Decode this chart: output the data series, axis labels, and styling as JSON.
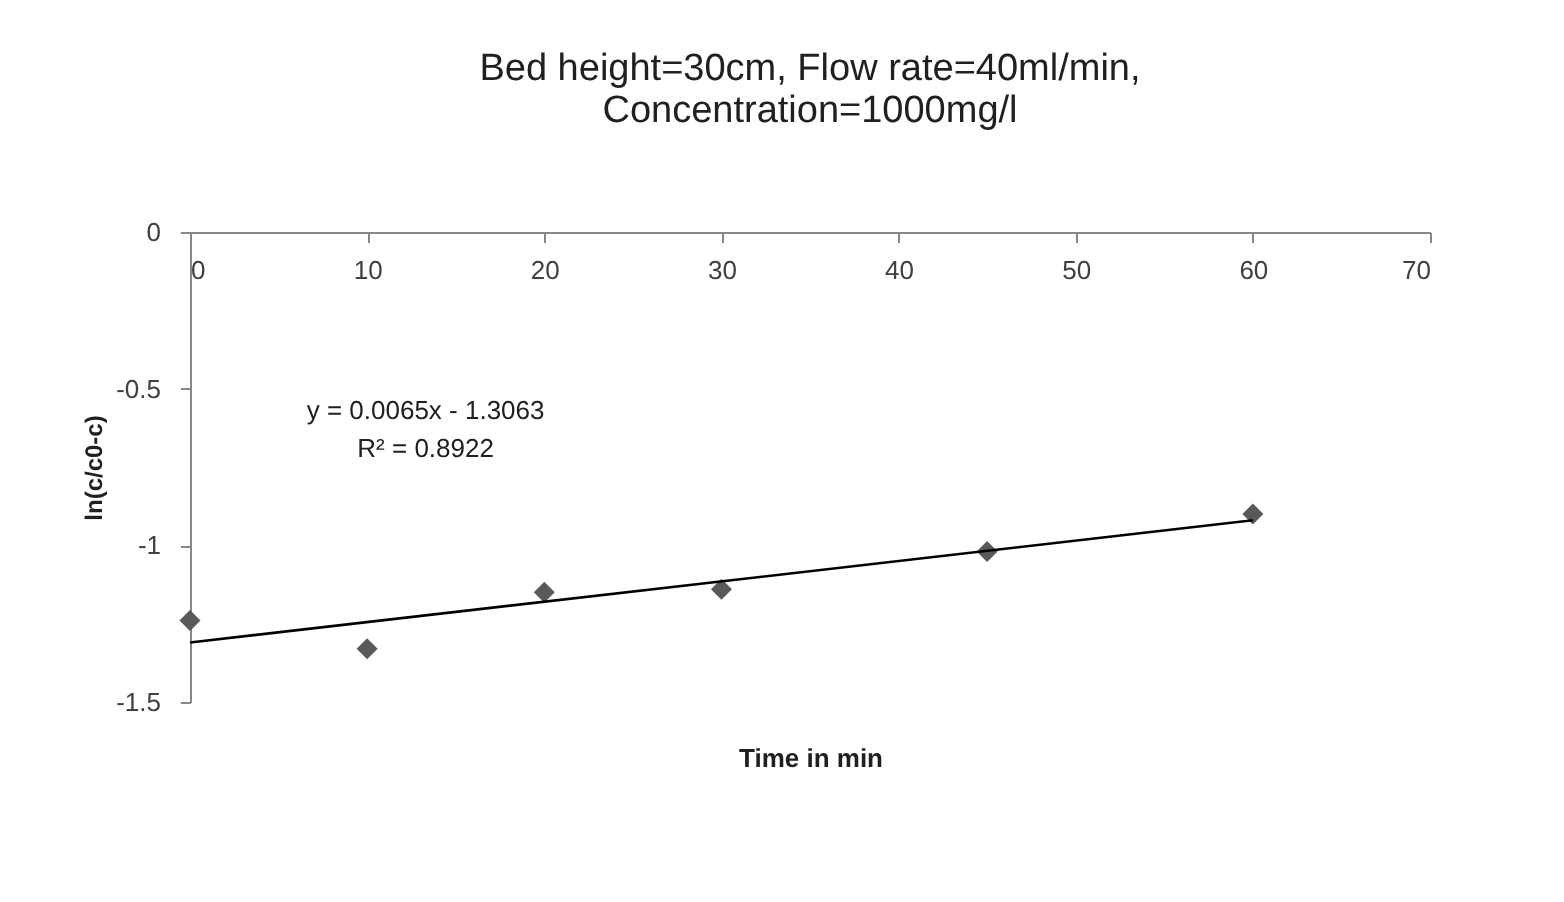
{
  "chart_data": {
    "type": "scatter",
    "title": [
      "Bed height=30cm, Flow rate=40ml/min,",
      "Concentration=1000mg/l"
    ],
    "xlabel": "Time in min",
    "ylabel": "ln(c/c0-c)",
    "series": [
      {
        "color": "#595959",
        "marker": "diamond",
        "x": [
          0,
          10,
          20,
          30,
          45,
          60
        ],
        "values": [
          -1.24,
          -1.33,
          -1.15,
          -1.14,
          -1.02,
          -0.9
        ]
      },
      {
        "type": "line",
        "color": "#000000",
        "marker": "none",
        "x": [
          0,
          60
        ],
        "values": [
          -1.31,
          -0.92
        ]
      }
    ],
    "annotations": [
      "y = 0.0065x - 1.3063",
      "R² = 0.8922"
    ],
    "xlim": [
      0,
      70
    ],
    "xticks": [
      0,
      10,
      20,
      30,
      40,
      50,
      60,
      70
    ],
    "ylim": [
      -1.5,
      0
    ],
    "yticks": [
      -1.5,
      -1,
      -0.5,
      0
    ],
    "grid": false
  }
}
